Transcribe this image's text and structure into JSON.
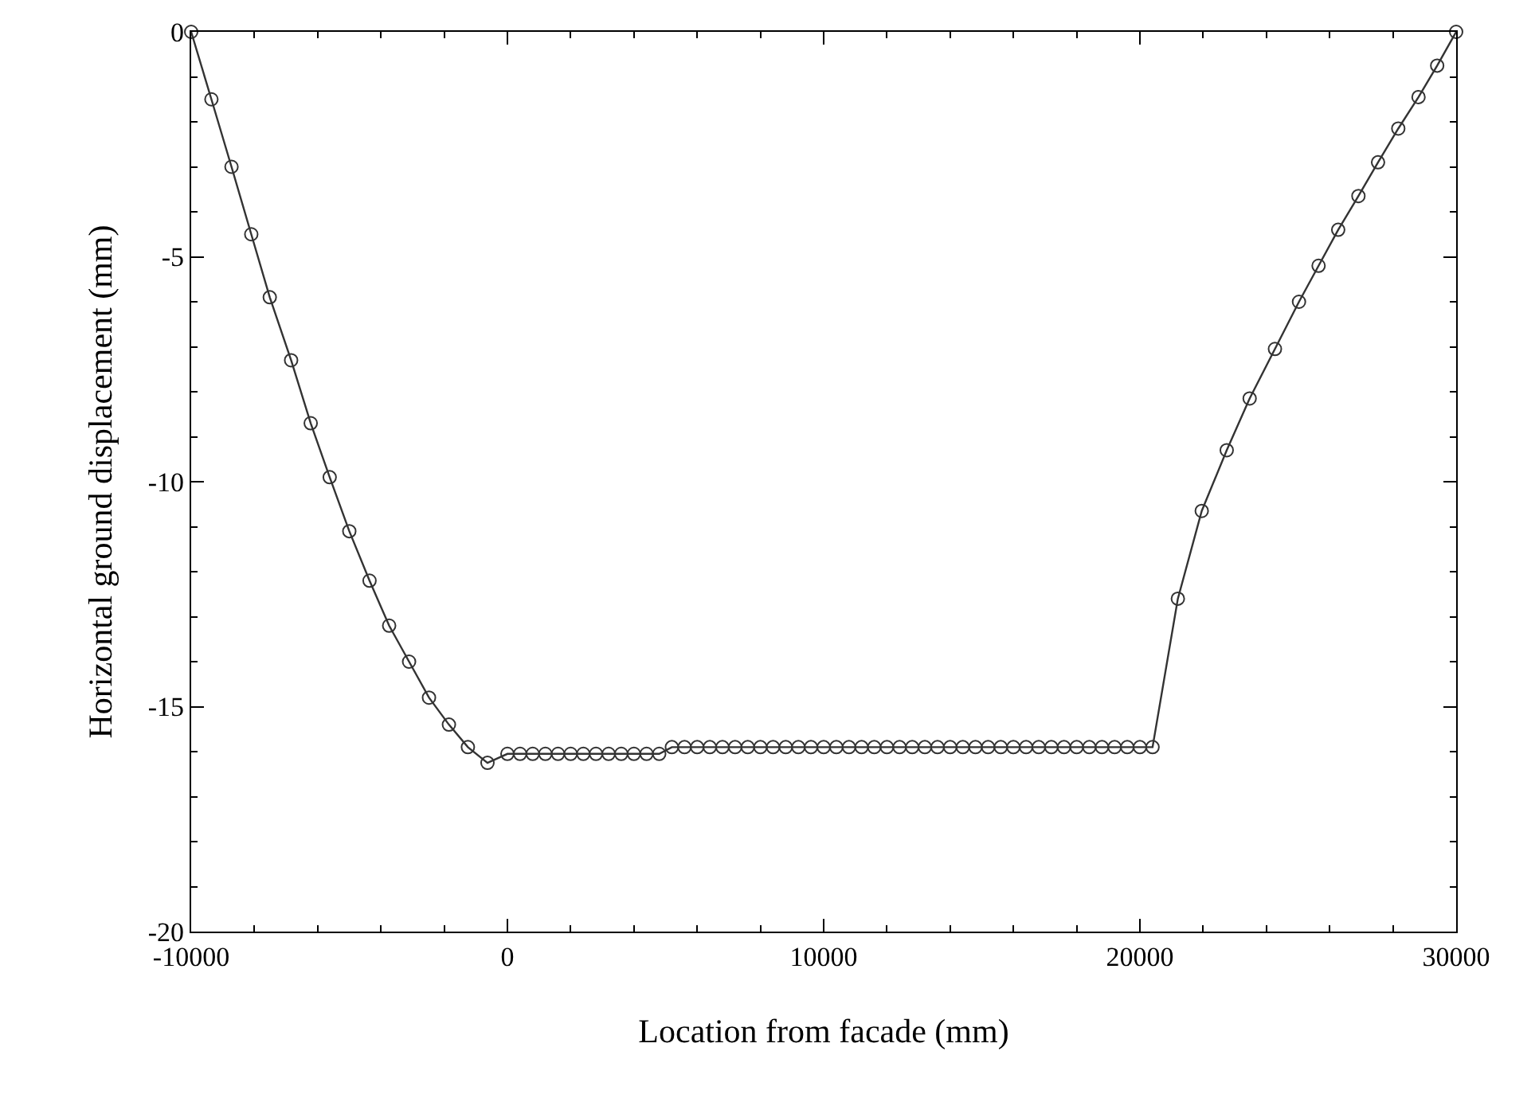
{
  "chart_data": {
    "type": "line",
    "xlabel": "Location from facade (mm)",
    "ylabel": "Horizontal ground displacement (mm)",
    "xlim": [
      -10000,
      30000
    ],
    "xticks": [
      -10000,
      0,
      10000,
      20000,
      30000
    ],
    "ylim": [
      -20,
      0
    ],
    "yticks": [
      -20,
      -15,
      -10,
      -5,
      0
    ],
    "marker": "circle",
    "line_style": "solid",
    "series": [
      {
        "color": "#333333",
        "x": [
          -10000,
          -9360,
          -8725,
          -8100,
          -7515,
          -6840,
          -6220,
          -5620,
          -5000,
          -4360,
          -3740,
          -3110,
          -2480,
          -1850,
          -1250,
          -630,
          0,
          400,
          800,
          1200,
          1600,
          2000,
          2400,
          2800,
          3200,
          3600,
          4000,
          4400,
          4800,
          5200,
          5600,
          6000,
          6400,
          6800,
          7200,
          7600,
          8000,
          8400,
          8800,
          9200,
          9600,
          10000,
          10400,
          10800,
          11200,
          11600,
          12000,
          12400,
          12800,
          13200,
          13600,
          14000,
          14400,
          14800,
          15200,
          15600,
          16000,
          16400,
          16800,
          17200,
          17600,
          18000,
          18400,
          18800,
          19200,
          19600,
          20000,
          20400,
          21200,
          21955,
          22745,
          23470,
          24270,
          25030,
          25650,
          26270,
          26910,
          27530,
          28170,
          28810,
          29400,
          30000
        ],
        "values": [
          0,
          -1.5,
          -3.0,
          -4.5,
          -5.9,
          -7.3,
          -8.7,
          -9.9,
          -11.1,
          -12.2,
          -13.2,
          -14.0,
          -14.8,
          -15.4,
          -15.9,
          -16.25,
          -16.05,
          -16.05,
          -16.05,
          -16.05,
          -16.05,
          -16.05,
          -16.05,
          -16.05,
          -16.05,
          -16.05,
          -16.05,
          -16.05,
          -16.05,
          -15.9,
          -15.9,
          -15.9,
          -15.9,
          -15.9,
          -15.9,
          -15.9,
          -15.9,
          -15.9,
          -15.9,
          -15.9,
          -15.9,
          -15.9,
          -15.9,
          -15.9,
          -15.9,
          -15.9,
          -15.9,
          -15.9,
          -15.9,
          -15.9,
          -15.9,
          -15.9,
          -15.9,
          -15.9,
          -15.9,
          -15.9,
          -15.9,
          -15.9,
          -15.9,
          -15.9,
          -15.9,
          -15.9,
          -15.9,
          -15.9,
          -15.9,
          -15.9,
          -15.9,
          -15.9,
          -12.6,
          -10.65,
          -9.3,
          -8.15,
          -7.05,
          -6.0,
          -5.2,
          -4.4,
          -3.65,
          -2.9,
          -2.15,
          -1.45,
          -0.75,
          0
        ]
      }
    ]
  }
}
